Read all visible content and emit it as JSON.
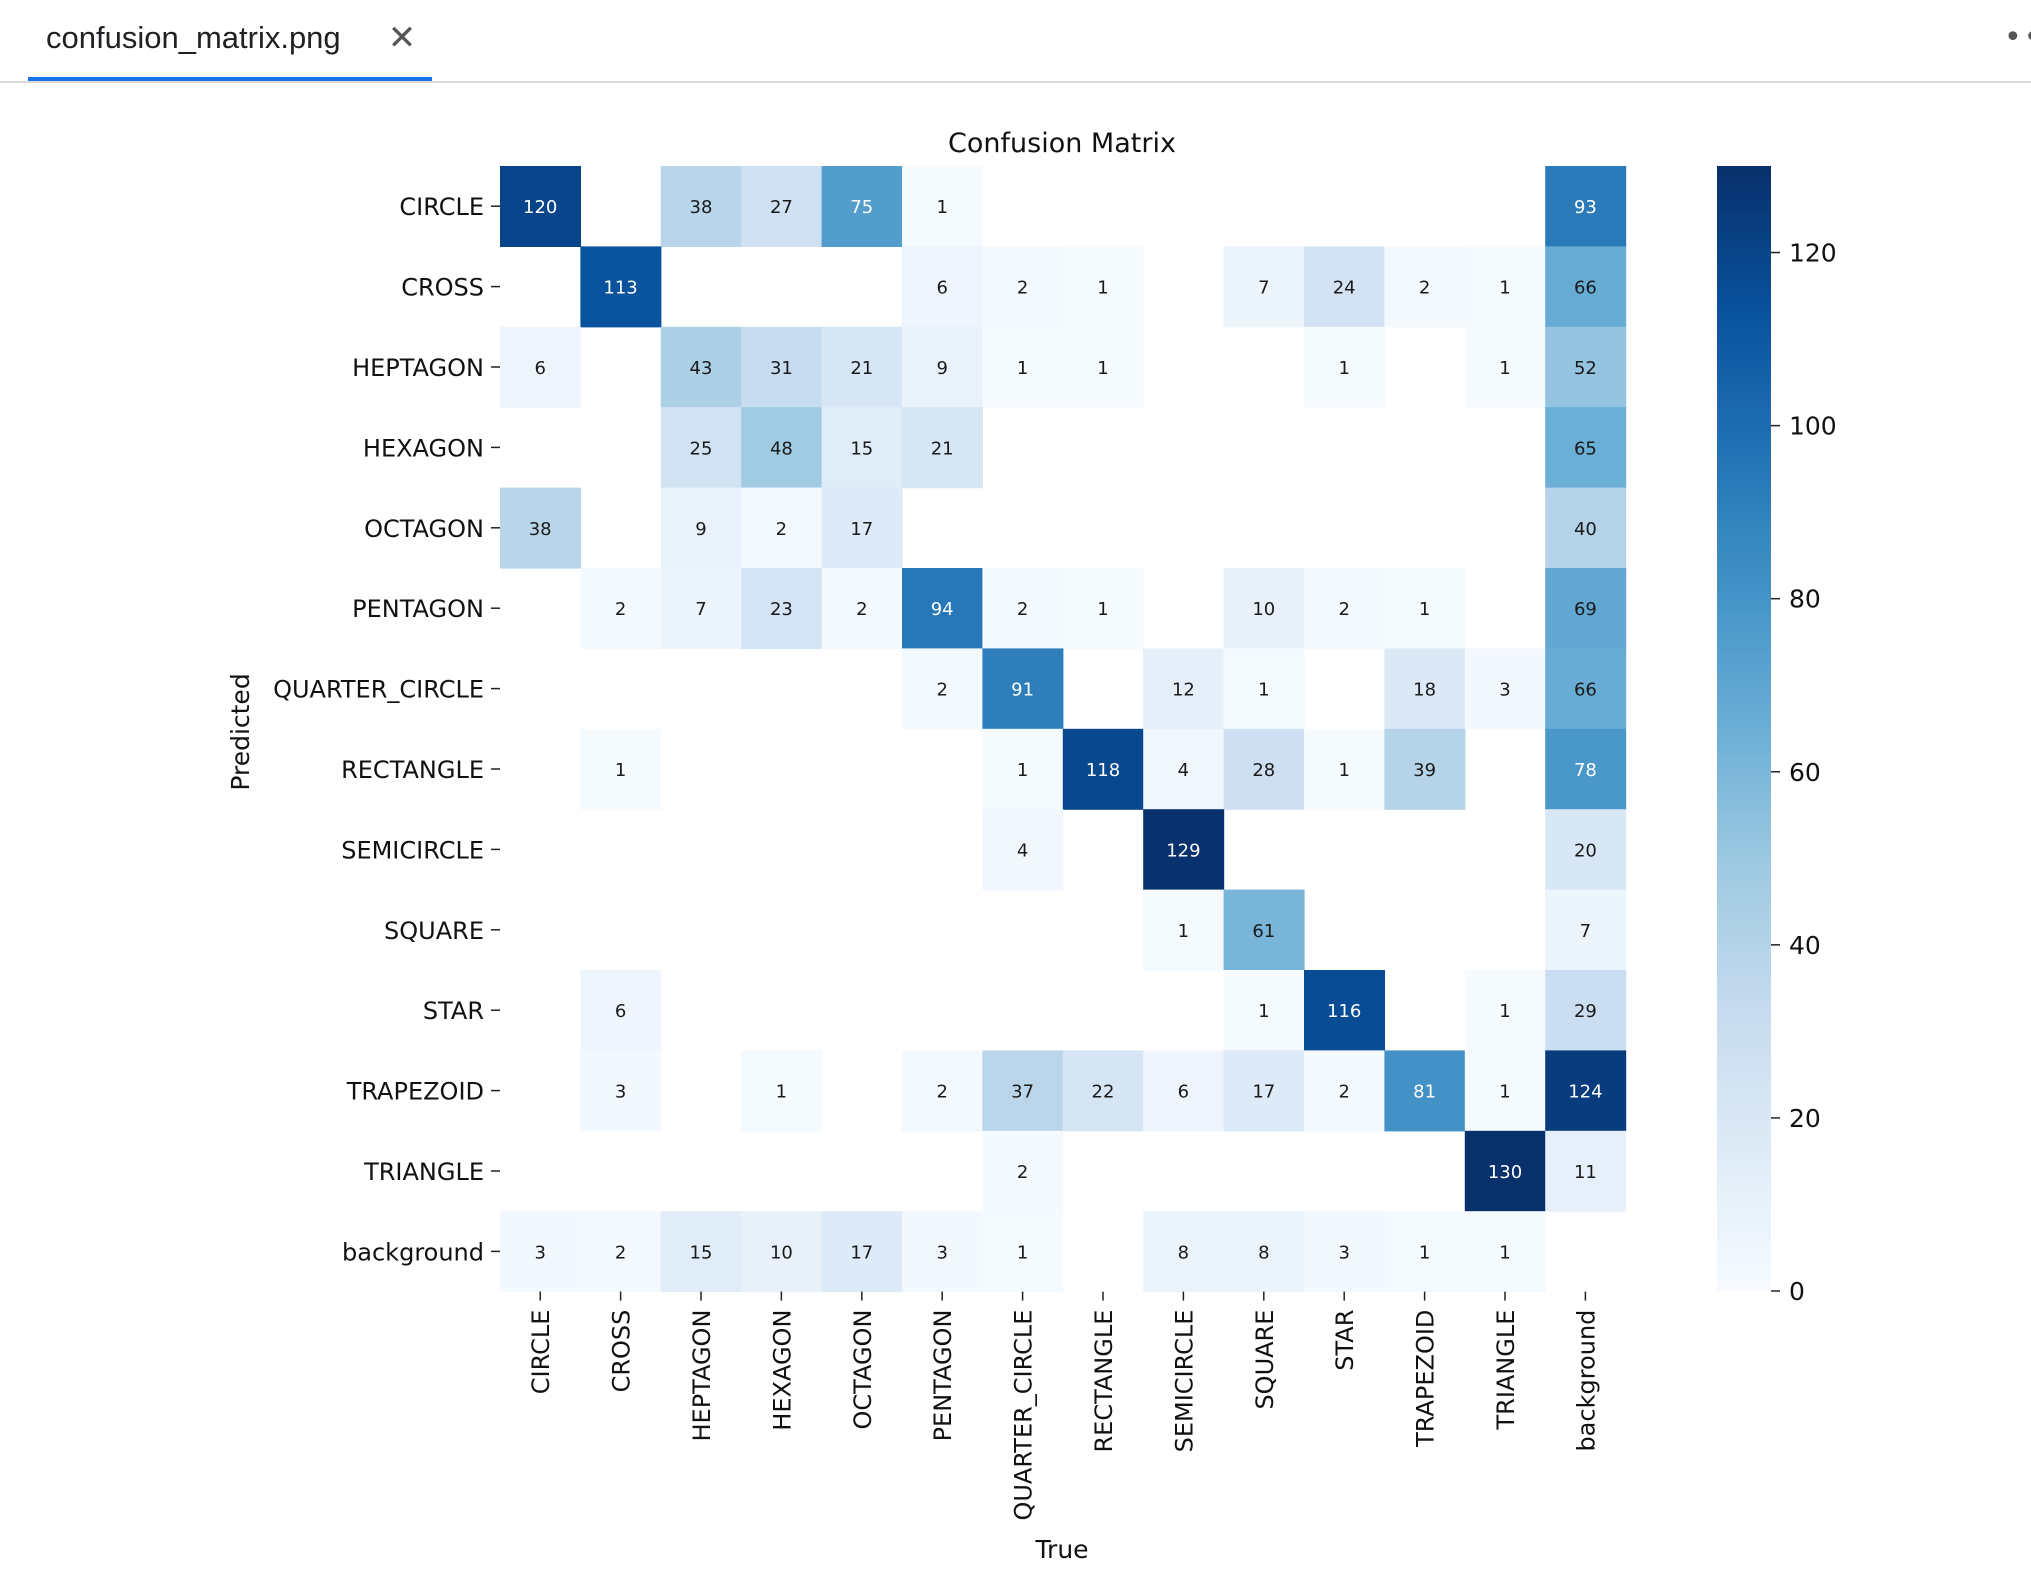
{
  "tab": {
    "title": "confusion_matrix.png",
    "close_icon": "close-icon"
  },
  "menu": {
    "icon": "more-horizontal-icon"
  },
  "chart_data": {
    "type": "heatmap",
    "title": "Confusion Matrix",
    "xlabel": "True",
    "ylabel": "Predicted",
    "colormap": "Blues",
    "color_low": "#f7fbff",
    "color_high": "#08306b",
    "vmin": 0,
    "vmax": 130,
    "colorbar_ticks": [
      0,
      20,
      40,
      60,
      80,
      100,
      120
    ],
    "x_labels": [
      "CIRCLE",
      "CROSS",
      "HEPTAGON",
      "HEXAGON",
      "OCTAGON",
      "PENTAGON",
      "QUARTER_CIRCLE",
      "RECTANGLE",
      "SEMICIRCLE",
      "SQUARE",
      "STAR",
      "TRAPEZOID",
      "TRIANGLE",
      "background"
    ],
    "y_labels": [
      "CIRCLE",
      "CROSS",
      "HEPTAGON",
      "HEXAGON",
      "OCTAGON",
      "PENTAGON",
      "QUARTER_CIRCLE",
      "RECTANGLE",
      "SEMICIRCLE",
      "SQUARE",
      "STAR",
      "TRAPEZOID",
      "TRIANGLE",
      "background"
    ],
    "matrix": [
      [
        120,
        0,
        38,
        27,
        75,
        1,
        0,
        0,
        0,
        0,
        0,
        0,
        0,
        93
      ],
      [
        0,
        113,
        0,
        0,
        0,
        6,
        2,
        1,
        0,
        7,
        24,
        2,
        1,
        66
      ],
      [
        6,
        0,
        43,
        31,
        21,
        9,
        1,
        1,
        0,
        0,
        1,
        0,
        1,
        52
      ],
      [
        0,
        0,
        25,
        48,
        15,
        21,
        0,
        0,
        0,
        0,
        0,
        0,
        0,
        65
      ],
      [
        38,
        0,
        9,
        2,
        17,
        0,
        0,
        0,
        0,
        0,
        0,
        0,
        0,
        40
      ],
      [
        0,
        2,
        7,
        23,
        2,
        94,
        2,
        1,
        0,
        10,
        2,
        1,
        0,
        69
      ],
      [
        0,
        0,
        0,
        0,
        0,
        2,
        91,
        0,
        12,
        1,
        0,
        18,
        3,
        66
      ],
      [
        0,
        1,
        0,
        0,
        0,
        0,
        1,
        118,
        4,
        28,
        1,
        39,
        0,
        78
      ],
      [
        0,
        0,
        0,
        0,
        0,
        0,
        4,
        0,
        129,
        0,
        0,
        0,
        0,
        20
      ],
      [
        0,
        0,
        0,
        0,
        0,
        0,
        0,
        0,
        1,
        61,
        0,
        0,
        0,
        7
      ],
      [
        0,
        6,
        0,
        0,
        0,
        0,
        0,
        0,
        0,
        1,
        116,
        0,
        1,
        29
      ],
      [
        0,
        3,
        0,
        1,
        0,
        2,
        37,
        22,
        6,
        17,
        2,
        81,
        1,
        124
      ],
      [
        0,
        0,
        0,
        0,
        0,
        0,
        2,
        0,
        0,
        0,
        0,
        0,
        130,
        11
      ],
      [
        3,
        2,
        15,
        10,
        17,
        3,
        1,
        0,
        8,
        8,
        3,
        1,
        1,
        0
      ]
    ]
  }
}
